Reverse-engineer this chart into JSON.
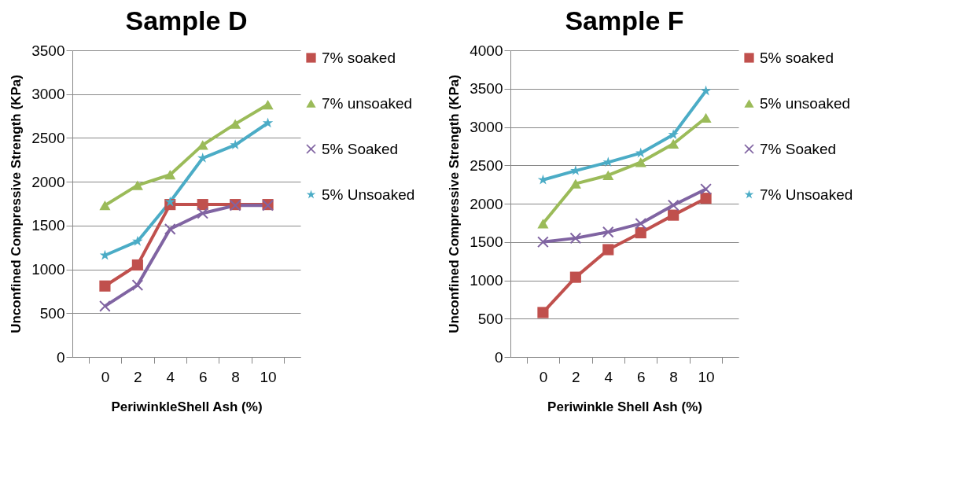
{
  "chart_data": [
    {
      "type": "line",
      "title": "Sample D",
      "xlabel": "PeriwinkleShell Ash (%)",
      "ylabel": "Unconfined Compressive Strength (KPa)",
      "categories": [
        "0",
        "2",
        "4",
        "6",
        "8",
        "10"
      ],
      "ylim": [
        0,
        3500
      ],
      "yticks": [
        0,
        500,
        1000,
        1500,
        2000,
        2500,
        3000,
        3500
      ],
      "grid": "y",
      "legend": "right",
      "series": [
        {
          "name": "7% soaked",
          "color": "#c0504d",
          "marker": "square",
          "values": [
            810,
            1050,
            1740,
            1740,
            1740,
            1740
          ]
        },
        {
          "name": "7% unsoaked",
          "color": "#9bbb59",
          "marker": "triangle",
          "values": [
            1730,
            1960,
            2080,
            2420,
            2660,
            2880
          ]
        },
        {
          "name": "5% Soaked",
          "color": "#8064a2",
          "marker": "cross",
          "values": [
            580,
            820,
            1460,
            1640,
            1730,
            1730
          ]
        },
        {
          "name": "5% Unsoaked",
          "color": "#4bacc6",
          "marker": "star",
          "values": [
            1160,
            1320,
            1770,
            2270,
            2420,
            2670
          ]
        }
      ]
    },
    {
      "type": "line",
      "title": "Sample F",
      "xlabel": "Periwinkle Shell Ash (%)",
      "ylabel": "Unconfined Compressive Strength (KPa)",
      "categories": [
        "0",
        "2",
        "4",
        "6",
        "8",
        "10"
      ],
      "ylim": [
        0,
        4000
      ],
      "yticks": [
        0,
        500,
        1000,
        1500,
        2000,
        2500,
        3000,
        3500,
        4000
      ],
      "grid": "y",
      "legend": "right",
      "series": [
        {
          "name": "5% soaked",
          "color": "#c0504d",
          "marker": "square",
          "values": [
            580,
            1040,
            1400,
            1620,
            1850,
            2070
          ]
        },
        {
          "name": "5% unsoaked",
          "color": "#9bbb59",
          "marker": "triangle",
          "values": [
            1740,
            2260,
            2370,
            2540,
            2780,
            3120
          ]
        },
        {
          "name": "7% Soaked",
          "color": "#8064a2",
          "marker": "cross",
          "values": [
            1500,
            1550,
            1630,
            1740,
            1980,
            2190
          ]
        },
        {
          "name": "7% Unsoaked",
          "color": "#4bacc6",
          "marker": "star",
          "values": [
            2310,
            2430,
            2540,
            2660,
            2900,
            3470
          ]
        }
      ]
    }
  ]
}
